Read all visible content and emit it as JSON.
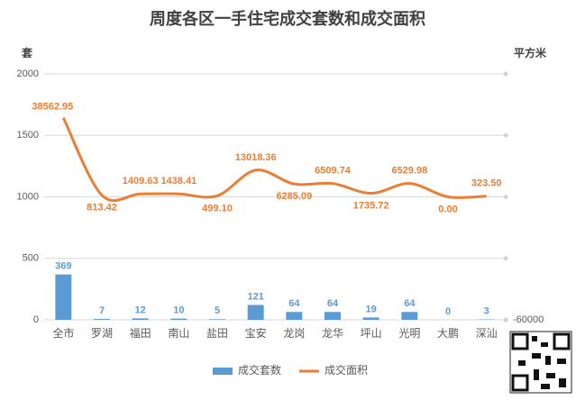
{
  "chart_data": {
    "type": "bar",
    "title": "周度各区一手住宅成交套数和成交面积",
    "y_label": "套",
    "y2_label": "平方米",
    "categories": [
      "全市",
      "罗湖",
      "福田",
      "南山",
      "盐田",
      "宝安",
      "龙岗",
      "龙华",
      "坪山",
      "光明",
      "大鹏",
      "深汕"
    ],
    "series": [
      {
        "name": "成交套数",
        "type": "bar",
        "color": "#5b9bd5",
        "values": [
          369,
          7,
          12,
          10,
          5,
          121,
          64,
          64,
          19,
          64,
          0,
          3
        ]
      },
      {
        "name": "成交面积",
        "type": "line",
        "axis": "y2",
        "color": "#ed7d31",
        "values": [
          38562.95,
          813.42,
          1409.63,
          1438.41,
          499.1,
          13018.36,
          6285.09,
          6509.74,
          1735.72,
          6529.98,
          0.0,
          323.5
        ],
        "value_labels": [
          "38562.95",
          "813.42",
          "1409.63",
          "1438.41",
          "499.10",
          "13018.36",
          "6285.09",
          "6509.74",
          "1735.72",
          "6529.98",
          "0.00",
          "323.50"
        ]
      }
    ],
    "ylim": [
      0,
      2000
    ],
    "yticks": [
      0,
      500,
      1000,
      1500,
      2000
    ],
    "y2lim": [
      -60000,
      60000
    ],
    "y2ticks": [
      -60000
    ],
    "grid": true,
    "legend": "bottom"
  }
}
